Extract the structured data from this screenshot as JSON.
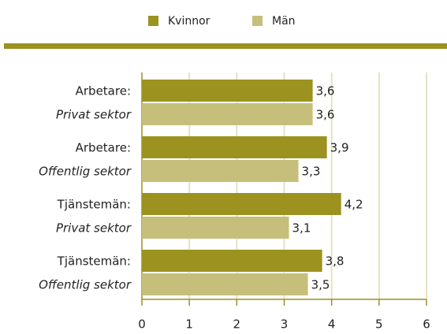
{
  "chart_data": {
    "type": "bar",
    "orientation": "horizontal",
    "categories": [
      [
        "Arbetare:",
        "Privat sektor"
      ],
      [
        "Arbetare:",
        "Offentlig sektor"
      ],
      [
        "Tjänstemän:",
        "Privat sektor"
      ],
      [
        "Tjänstemän:",
        "Offentlig sektor"
      ]
    ],
    "series": [
      {
        "name": "Kvinnor",
        "color": "#9b921f",
        "values": [
          3.6,
          3.9,
          4.2,
          3.8
        ],
        "value_labels": [
          "3,6",
          "3,9",
          "4,2",
          "3,8"
        ]
      },
      {
        "name": "Män",
        "color": "#c6bf7b",
        "values": [
          3.6,
          3.3,
          3.1,
          3.5
        ],
        "value_labels": [
          "3,6",
          "3,3",
          "3,1",
          "3,5"
        ]
      }
    ],
    "xlim": [
      0,
      6
    ],
    "xticks": [
      0,
      1,
      2,
      3,
      4,
      5,
      6
    ],
    "grid": true,
    "legend": "top"
  }
}
